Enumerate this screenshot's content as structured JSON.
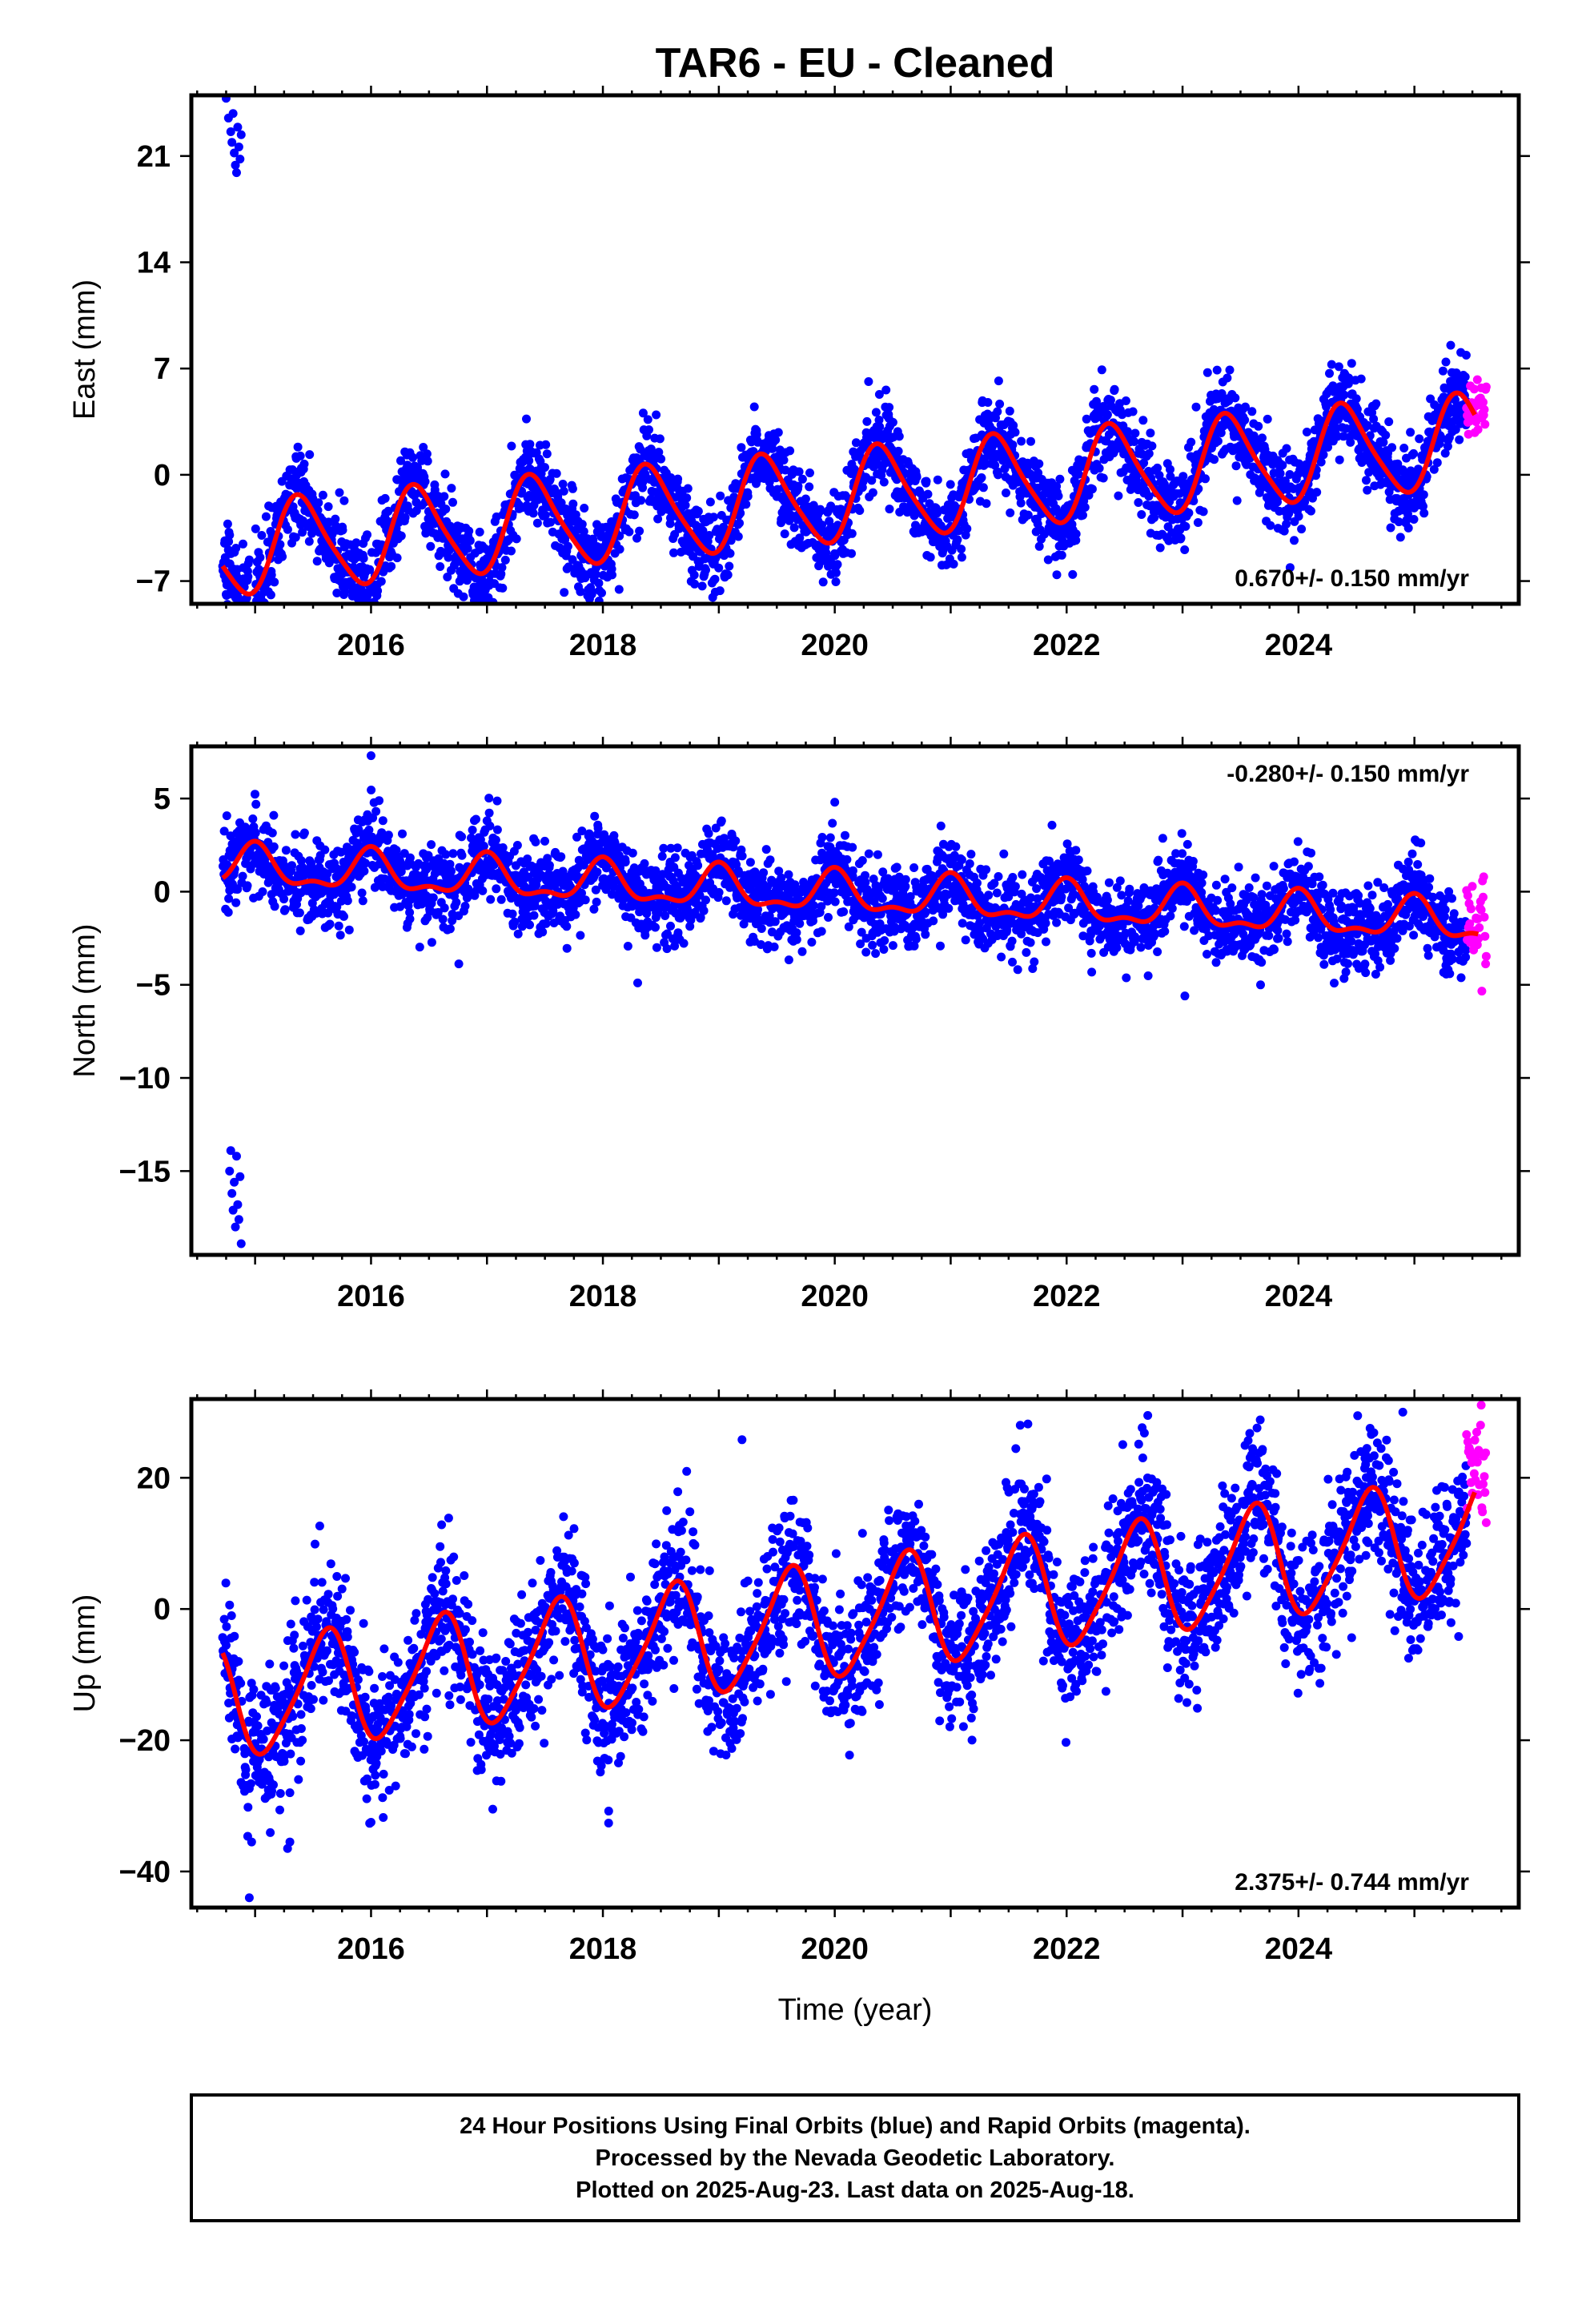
{
  "title": "TAR6  - EU - Cleaned",
  "footer": {
    "line1": "24 Hour Positions Using Final Orbits (blue) and Rapid Orbits (magenta).",
    "line2": "Processed by the Nevada Geodetic Laboratory.",
    "line3": "Plotted on 2025-Aug-23. Last data on 2025-Aug-18."
  },
  "colors": {
    "final": "#0000ff",
    "rapid": "#ff00ff",
    "fit": "#ff0000"
  },
  "chart_data": [
    {
      "type": "scatter",
      "ylabel": "East (mm)",
      "xlabel": "",
      "xlim": [
        2014.45,
        2025.9
      ],
      "ylim": [
        -8.5,
        25
      ],
      "xticks": [
        2016,
        2018,
        2020,
        2022,
        2024
      ],
      "yticks": [
        -7,
        0,
        7,
        14,
        21
      ],
      "rate_label": "0.670+/- 0.150 mm/yr",
      "rate_position": "bottom-right",
      "model": {
        "start": 2014.72,
        "end": 2025.52,
        "intercept": -1.8,
        "trend": 0.67,
        "ref_year": 2019.5,
        "annual_amp": 3.0,
        "annual_peak": 2015.4,
        "semiannual_amp": 0.5,
        "semiannual_peak": 2015.3
      },
      "noise": 1.4,
      "rapid": {
        "start": 2025.45,
        "end": 2025.62,
        "center": 4.5,
        "spread": 1.2
      },
      "outliers": [
        {
          "x": 2014.75,
          "y": 24.8
        },
        {
          "x": 2014.77,
          "y": 23.5
        },
        {
          "x": 2014.79,
          "y": 22.6
        },
        {
          "x": 2014.8,
          "y": 21.9
        },
        {
          "x": 2014.82,
          "y": 21.2
        },
        {
          "x": 2014.83,
          "y": 20.4
        },
        {
          "x": 2014.85,
          "y": 22.9
        },
        {
          "x": 2014.86,
          "y": 21.6
        },
        {
          "x": 2014.88,
          "y": 22.4
        },
        {
          "x": 2014.84,
          "y": 19.9
        },
        {
          "x": 2014.81,
          "y": 23.8
        },
        {
          "x": 2014.87,
          "y": 20.8
        }
      ],
      "gaps": [
        [
          2014.95,
          2015.0
        ]
      ]
    },
    {
      "type": "scatter",
      "ylabel": "North (mm)",
      "xlabel": "",
      "xlim": [
        2014.45,
        2025.9
      ],
      "ylim": [
        -19.5,
        7.8
      ],
      "xticks": [
        2016,
        2018,
        2020,
        2022,
        2024
      ],
      "yticks": [
        -15,
        -10,
        -5,
        0,
        5
      ],
      "rate_label": "-0.280+/- 0.150 mm/yr",
      "rate_position": "top-right",
      "model": {
        "start": 2014.72,
        "end": 2025.55,
        "intercept": 0.0,
        "trend": -0.28,
        "ref_year": 2019.5,
        "annual_amp": 1.0,
        "annual_peak": 2015.0,
        "semiannual_amp": 0.45,
        "semiannual_peak": 2015.0
      },
      "noise": 1.1,
      "rapid": {
        "start": 2025.45,
        "end": 2025.62,
        "center": -1.8,
        "spread": 1.3
      },
      "outliers": [
        {
          "x": 2014.78,
          "y": -15.0
        },
        {
          "x": 2014.8,
          "y": -16.2
        },
        {
          "x": 2014.81,
          "y": -17.1
        },
        {
          "x": 2014.82,
          "y": -15.6
        },
        {
          "x": 2014.83,
          "y": -18.0
        },
        {
          "x": 2014.84,
          "y": -14.2
        },
        {
          "x": 2014.85,
          "y": -16.8
        },
        {
          "x": 2014.86,
          "y": -17.6
        },
        {
          "x": 2014.87,
          "y": -15.3
        },
        {
          "x": 2014.88,
          "y": -18.9
        },
        {
          "x": 2014.79,
          "y": -13.9
        },
        {
          "x": 2016.0,
          "y": 7.3
        },
        {
          "x": 2018.3,
          "y": -4.9
        },
        {
          "x": 2023.02,
          "y": -5.6
        },
        {
          "x": 2020.0,
          "y": 4.8
        }
      ],
      "gaps": []
    },
    {
      "type": "scatter",
      "ylabel": "Up (mm)",
      "xlabel": "Time (year)",
      "xlim": [
        2014.45,
        2025.9
      ],
      "ylim": [
        -45.5,
        32
      ],
      "xticks": [
        2016,
        2018,
        2020,
        2022,
        2024
      ],
      "yticks": [
        -40,
        -20,
        0,
        20
      ],
      "rate_label": "2.375+/- 0.744 mm/yr",
      "rate_position": "bottom-right",
      "model": {
        "start": 2014.72,
        "end": 2025.52,
        "intercept": -3.0,
        "trend": 2.375,
        "ref_year": 2019.5,
        "annual_amp": 8.5,
        "annual_peak": 2015.6,
        "semiannual_amp": 1.5,
        "semiannual_peak": 2015.7
      },
      "noise": 5.5,
      "rapid": {
        "start": 2025.45,
        "end": 2025.62,
        "center": 22,
        "spread": 4
      },
      "outliers": [
        {
          "x": 2014.95,
          "y": -44.0
        },
        {
          "x": 2014.97,
          "y": -35.5
        },
        {
          "x": 2015.3,
          "y": -35.5
        },
        {
          "x": 2015.28,
          "y": -36.5
        },
        {
          "x": 2015.3,
          "y": -28.0
        },
        {
          "x": 2019.2,
          "y": 25.8
        },
        {
          "x": 2021.6,
          "y": 28.0
        },
        {
          "x": 2022.7,
          "y": 29.5
        },
        {
          "x": 2024.9,
          "y": 30.0
        },
        {
          "x": 2024.95,
          "y": -7.5
        },
        {
          "x": 2016.0,
          "y": -32.5
        },
        {
          "x": 2017.05,
          "y": -30.5
        },
        {
          "x": 2018.05,
          "y": -30.8
        }
      ],
      "gaps": []
    }
  ]
}
